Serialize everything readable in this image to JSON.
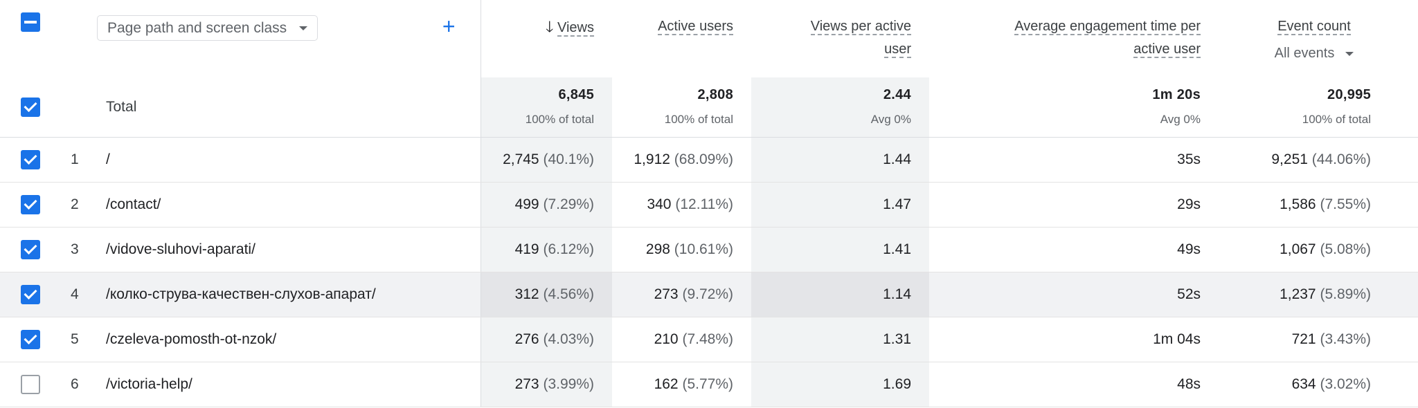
{
  "dimension": {
    "label": "Page path and screen class"
  },
  "add_dimension": "+",
  "columns": {
    "views": "Views",
    "active_users": "Active users",
    "views_per_user": "Views per active user",
    "avg_engagement": "Average engagement time per active user",
    "event_count": "Event count",
    "event_select": "All events"
  },
  "total": {
    "label": "Total",
    "views": "6,845",
    "views_sub": "100% of total",
    "active_users": "2,808",
    "active_users_sub": "100% of total",
    "views_per_user": "2.44",
    "views_per_user_sub": "Avg 0%",
    "avg_engagement": "1m 20s",
    "avg_engagement_sub": "Avg 0%",
    "event_count": "20,995",
    "event_count_sub": "100% of total"
  },
  "rows": [
    {
      "n": "1",
      "path": "/",
      "views": "2,745",
      "views_pct": "(40.1%)",
      "users": "1,912",
      "users_pct": "(68.09%)",
      "vpu": "1.44",
      "aet": "35s",
      "events": "9,251",
      "events_pct": "(44.06%)",
      "checked": true
    },
    {
      "n": "2",
      "path": "/contact/",
      "views": "499",
      "views_pct": "(7.29%)",
      "users": "340",
      "users_pct": "(12.11%)",
      "vpu": "1.47",
      "aet": "29s",
      "events": "1,586",
      "events_pct": "(7.55%)",
      "checked": true
    },
    {
      "n": "3",
      "path": "/vidove-sluhovi-aparati/",
      "views": "419",
      "views_pct": "(6.12%)",
      "users": "298",
      "users_pct": "(10.61%)",
      "vpu": "1.41",
      "aet": "49s",
      "events": "1,067",
      "events_pct": "(5.08%)",
      "checked": true
    },
    {
      "n": "4",
      "path": "/колко-струва-качествен-слухов-апарат/",
      "views": "312",
      "views_pct": "(4.56%)",
      "users": "273",
      "users_pct": "(9.72%)",
      "vpu": "1.14",
      "aet": "52s",
      "events": "1,237",
      "events_pct": "(5.89%)",
      "checked": true
    },
    {
      "n": "5",
      "path": "/czeleva-pomosth-ot-nzok/",
      "views": "276",
      "views_pct": "(4.03%)",
      "users": "210",
      "users_pct": "(7.48%)",
      "vpu": "1.31",
      "aet": "1m 04s",
      "events": "721",
      "events_pct": "(3.43%)",
      "checked": true
    },
    {
      "n": "6",
      "path": "/victoria-help/",
      "views": "273",
      "views_pct": "(3.99%)",
      "users": "162",
      "users_pct": "(5.77%)",
      "vpu": "1.69",
      "aet": "48s",
      "events": "634",
      "events_pct": "(3.02%)",
      "checked": false
    }
  ]
}
